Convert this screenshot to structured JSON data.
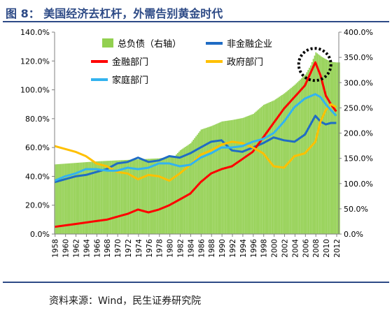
{
  "figure": {
    "title": "图 8： 美国经济去杠杆，外需告别黄金时代",
    "source": "资料来源：Wind，民生证券研究院"
  },
  "chart_data": {
    "type": "bar+line",
    "x_tick_labels": [
      "1958",
      "1960",
      "1962",
      "1964",
      "1966",
      "1968",
      "1970",
      "1972",
      "1974",
      "1976",
      "1978",
      "1980",
      "1982",
      "1984",
      "1986",
      "1988",
      "1990",
      "1992",
      "1994",
      "1996",
      "1998",
      "2000",
      "2002",
      "2004",
      "2006",
      "2008",
      "2010",
      "2012"
    ],
    "x_range": [
      1958,
      2012.5
    ],
    "left_axis": {
      "ylim": [
        0,
        140
      ],
      "ticks": [
        0,
        20,
        40,
        60,
        80,
        100,
        120,
        140
      ],
      "tick_labels": [
        "0.0%",
        "20.0%",
        "40.0%",
        "60.0%",
        "80.0%",
        "100.0%",
        "120.0%",
        "140.0%"
      ]
    },
    "right_axis": {
      "ylim": [
        0,
        400
      ],
      "ticks": [
        0,
        50,
        100,
        150,
        200,
        250,
        300,
        350,
        400
      ],
      "tick_labels": [
        "0.0%",
        "50.0%",
        "100.0%",
        "150.0%",
        "200.0%",
        "250.0%",
        "300.0%",
        "350.0%",
        "400.0%"
      ]
    },
    "legend_placement": "top",
    "bars": {
      "name": "总负债（右轴）",
      "axis": "right",
      "color": "#92d050",
      "points": [
        [
          1958,
          138
        ],
        [
          1962,
          141
        ],
        [
          1966,
          144
        ],
        [
          1970,
          146
        ],
        [
          1974,
          148
        ],
        [
          1978,
          150
        ],
        [
          1981,
          155
        ],
        [
          1982,
          166
        ],
        [
          1984,
          180
        ],
        [
          1986,
          207
        ],
        [
          1988,
          214
        ],
        [
          1990,
          223
        ],
        [
          1992,
          226
        ],
        [
          1994,
          230
        ],
        [
          1996,
          238
        ],
        [
          1998,
          256
        ],
        [
          2000,
          265
        ],
        [
          2002,
          279
        ],
        [
          2004,
          296
        ],
        [
          2006,
          316
        ],
        [
          2007,
          334
        ],
        [
          2008,
          360
        ],
        [
          2009,
          352
        ],
        [
          2010,
          346
        ],
        [
          2011,
          341
        ],
        [
          2012,
          340
        ]
      ]
    },
    "series": [
      {
        "name": "非金融企业",
        "color": "#1f6cc4",
        "points": [
          [
            1958,
            36
          ],
          [
            1960,
            38
          ],
          [
            1962,
            40
          ],
          [
            1964,
            41
          ],
          [
            1966,
            43
          ],
          [
            1968,
            45
          ],
          [
            1970,
            49
          ],
          [
            1972,
            50
          ],
          [
            1974,
            53
          ],
          [
            1976,
            50
          ],
          [
            1978,
            51
          ],
          [
            1980,
            54
          ],
          [
            1982,
            53
          ],
          [
            1984,
            56
          ],
          [
            1986,
            60
          ],
          [
            1988,
            64
          ],
          [
            1990,
            65
          ],
          [
            1992,
            58
          ],
          [
            1994,
            57
          ],
          [
            1996,
            60
          ],
          [
            1998,
            63
          ],
          [
            2000,
            67
          ],
          [
            2002,
            65
          ],
          [
            2004,
            64
          ],
          [
            2006,
            69
          ],
          [
            2008,
            82
          ],
          [
            2009,
            78
          ],
          [
            2010,
            76
          ],
          [
            2011,
            77
          ],
          [
            2012,
            77
          ]
        ]
      },
      {
        "name": "金融部门",
        "color": "#ff0000",
        "points": [
          [
            1958,
            5
          ],
          [
            1960,
            6
          ],
          [
            1962,
            7
          ],
          [
            1964,
            8
          ],
          [
            1966,
            9
          ],
          [
            1968,
            10
          ],
          [
            1970,
            12
          ],
          [
            1972,
            14
          ],
          [
            1974,
            17
          ],
          [
            1976,
            15
          ],
          [
            1978,
            17
          ],
          [
            1980,
            20
          ],
          [
            1982,
            24
          ],
          [
            1984,
            28
          ],
          [
            1986,
            36
          ],
          [
            1988,
            42
          ],
          [
            1990,
            45
          ],
          [
            1992,
            47
          ],
          [
            1994,
            52
          ],
          [
            1996,
            57
          ],
          [
            1998,
            67
          ],
          [
            2000,
            77
          ],
          [
            2002,
            87
          ],
          [
            2004,
            95
          ],
          [
            2006,
            103
          ],
          [
            2008,
            119
          ],
          [
            2009,
            110
          ],
          [
            2010,
            96
          ],
          [
            2011,
            90
          ],
          [
            2012,
            85
          ]
        ]
      },
      {
        "name": "政府部门",
        "color": "#ffc000",
        "points": [
          [
            1958,
            61
          ],
          [
            1960,
            59
          ],
          [
            1962,
            57
          ],
          [
            1964,
            54
          ],
          [
            1966,
            49
          ],
          [
            1968,
            47
          ],
          [
            1970,
            43
          ],
          [
            1972,
            42
          ],
          [
            1974,
            38
          ],
          [
            1976,
            41
          ],
          [
            1978,
            40
          ],
          [
            1980,
            37
          ],
          [
            1982,
            42
          ],
          [
            1984,
            48
          ],
          [
            1986,
            55
          ],
          [
            1988,
            58
          ],
          [
            1990,
            62
          ],
          [
            1992,
            64
          ],
          [
            1994,
            63
          ],
          [
            1996,
            60
          ],
          [
            1998,
            56
          ],
          [
            2000,
            47
          ],
          [
            2002,
            46
          ],
          [
            2004,
            54
          ],
          [
            2006,
            56
          ],
          [
            2008,
            64
          ],
          [
            2009,
            78
          ],
          [
            2010,
            86
          ],
          [
            2011,
            90
          ],
          [
            2012,
            88
          ]
        ]
      },
      {
        "name": "家庭部门",
        "color": "#33b3ef",
        "points": [
          [
            1958,
            37
          ],
          [
            1960,
            40
          ],
          [
            1962,
            42
          ],
          [
            1964,
            45
          ],
          [
            1966,
            45
          ],
          [
            1968,
            44
          ],
          [
            1970,
            44
          ],
          [
            1972,
            46
          ],
          [
            1974,
            45
          ],
          [
            1976,
            46
          ],
          [
            1978,
            49
          ],
          [
            1980,
            49
          ],
          [
            1982,
            47
          ],
          [
            1984,
            48
          ],
          [
            1986,
            53
          ],
          [
            1988,
            56
          ],
          [
            1990,
            60
          ],
          [
            1992,
            60
          ],
          [
            1994,
            61
          ],
          [
            1996,
            64
          ],
          [
            1998,
            66
          ],
          [
            2000,
            70
          ],
          [
            2002,
            78
          ],
          [
            2004,
            88
          ],
          [
            2006,
            94
          ],
          [
            2008,
            97
          ],
          [
            2009,
            95
          ],
          [
            2010,
            90
          ],
          [
            2011,
            86
          ],
          [
            2012,
            82
          ]
        ]
      }
    ],
    "annotation": "dashed circle around the 2008 peak"
  }
}
